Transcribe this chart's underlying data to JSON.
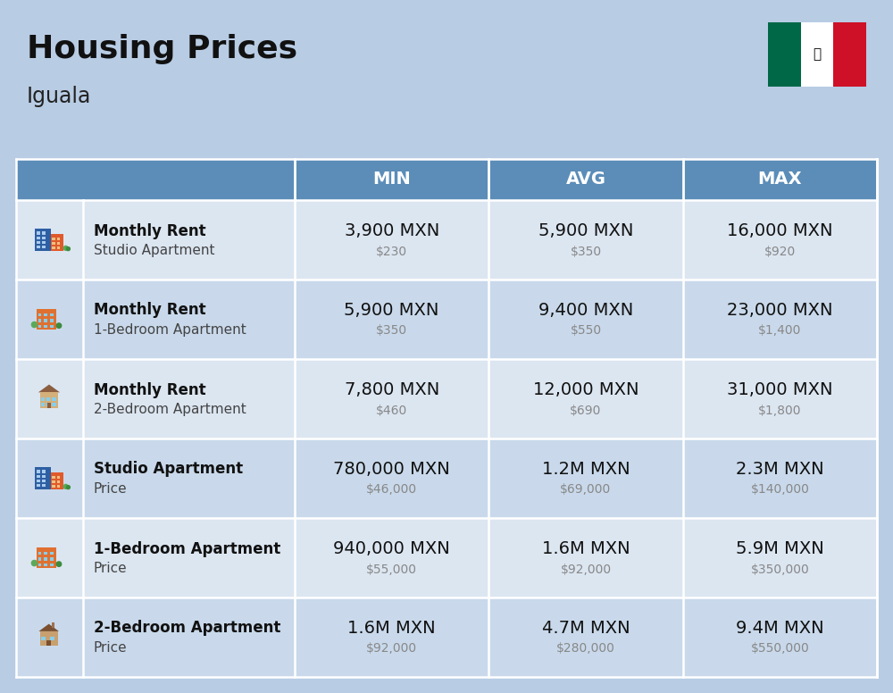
{
  "title": "Housing Prices",
  "subtitle": "Iguala",
  "background_color": "#b8cce4",
  "header_bg_color": "#5b8db8",
  "header_text_color": "#FFFFFF",
  "row_bg_colors": [
    "#dce6f1",
    "#c9d9eb"
  ],
  "col_headers": [
    "MIN",
    "AVG",
    "MAX"
  ],
  "rows": [
    {
      "bold_label": "Monthly Rent",
      "sub_label": "Studio Apartment",
      "icon_type": "blue_studio",
      "min_main": "3,900 MXN",
      "min_sub": "$230",
      "avg_main": "5,900 MXN",
      "avg_sub": "$350",
      "max_main": "16,000 MXN",
      "max_sub": "$920"
    },
    {
      "bold_label": "Monthly Rent",
      "sub_label": "1-Bedroom Apartment",
      "icon_type": "orange_1bed",
      "min_main": "5,900 MXN",
      "min_sub": "$350",
      "avg_main": "9,400 MXN",
      "avg_sub": "$550",
      "max_main": "23,000 MXN",
      "max_sub": "$1,400"
    },
    {
      "bold_label": "Monthly Rent",
      "sub_label": "2-Bedroom Apartment",
      "icon_type": "beige_2bed",
      "min_main": "7,800 MXN",
      "min_sub": "$460",
      "avg_main": "12,000 MXN",
      "avg_sub": "$690",
      "max_main": "31,000 MXN",
      "max_sub": "$1,800"
    },
    {
      "bold_label": "Studio Apartment",
      "sub_label": "Price",
      "icon_type": "blue_studio",
      "min_main": "780,000 MXN",
      "min_sub": "$46,000",
      "avg_main": "1.2M MXN",
      "avg_sub": "$69,000",
      "max_main": "2.3M MXN",
      "max_sub": "$140,000"
    },
    {
      "bold_label": "1-Bedroom Apartment",
      "sub_label": "Price",
      "icon_type": "orange_1bed",
      "min_main": "940,000 MXN",
      "min_sub": "$55,000",
      "avg_main": "1.6M MXN",
      "avg_sub": "$92,000",
      "max_main": "5.9M MXN",
      "max_sub": "$350,000"
    },
    {
      "bold_label": "2-Bedroom Apartment",
      "sub_label": "Price",
      "icon_type": "beige_house",
      "min_main": "1.6M MXN",
      "min_sub": "$92,000",
      "avg_main": "4.7M MXN",
      "avg_sub": "$280,000",
      "max_main": "9.4M MXN",
      "max_sub": "$550,000"
    }
  ],
  "title_fontsize": 26,
  "subtitle_fontsize": 17,
  "header_fontsize": 14,
  "main_value_fontsize": 14,
  "sub_value_fontsize": 10,
  "label_bold_fontsize": 12,
  "label_sub_fontsize": 11,
  "flag_green": "#006847",
  "flag_white": "#FFFFFF",
  "flag_red": "#CE1126"
}
